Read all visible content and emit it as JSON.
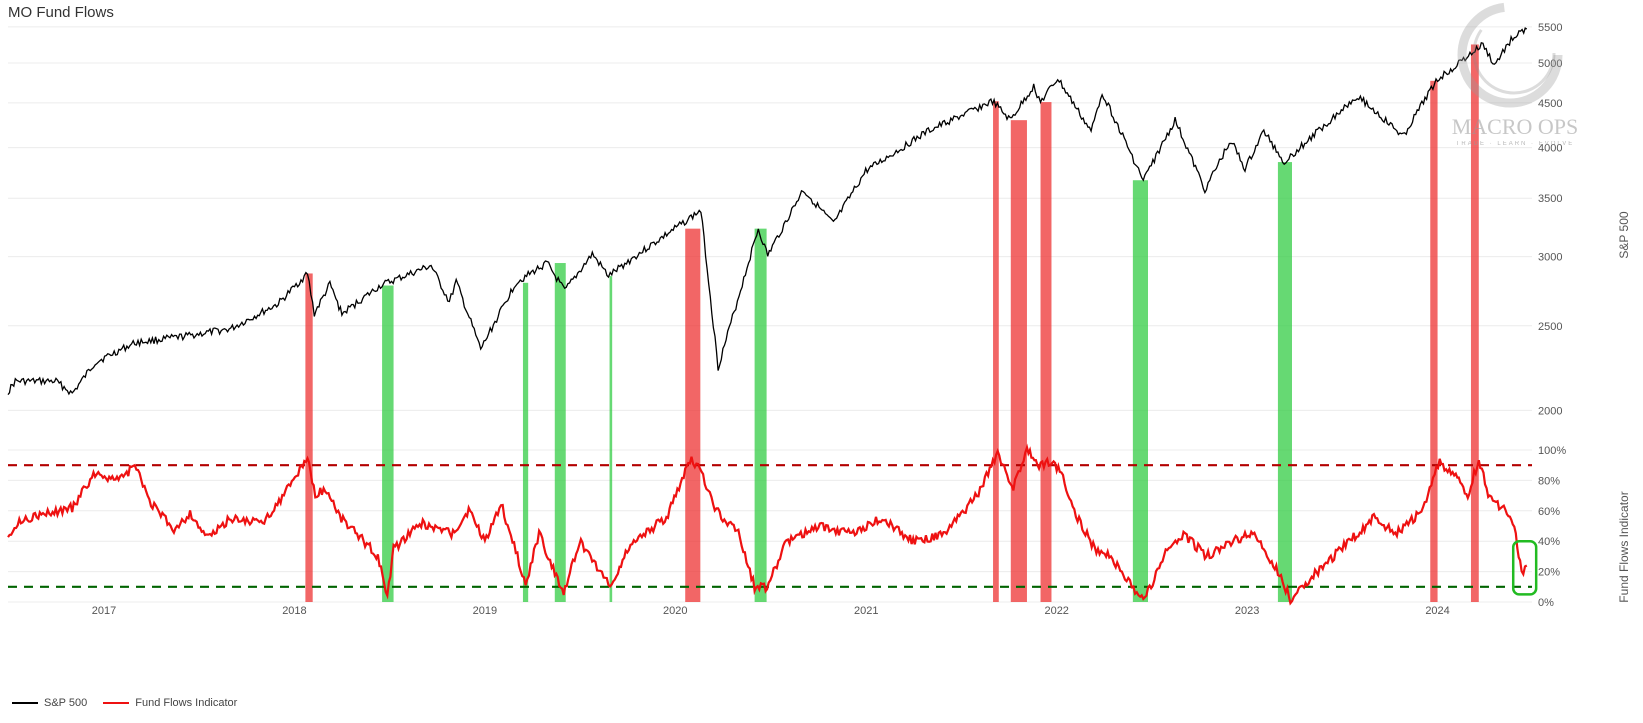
{
  "title": "MO Fund Flows",
  "watermark": {
    "name": "MACRO OPS",
    "tagline": "TRADE · LEARN · EVOLVE"
  },
  "legend": [
    {
      "label": "S&P 500",
      "color": "#000000"
    },
    {
      "label": "Fund Flows Indicator",
      "color": "#ee1111"
    }
  ],
  "chart_data": [
    {
      "type": "line",
      "name": "S&P 500",
      "ylabel": "S&P 500",
      "yscale": "log",
      "ylim": [
        1950,
        5600
      ],
      "yticks": [
        2000,
        2500,
        3000,
        3500,
        4000,
        4500,
        5000,
        5500
      ],
      "xlim": [
        "2016-07-01",
        "2024-06-30"
      ],
      "grid": true,
      "points": [
        [
          "2016-07-01",
          2100
        ],
        [
          "2016-07-15",
          2160
        ],
        [
          "2016-10-01",
          2160
        ],
        [
          "2016-11-01",
          2090
        ],
        [
          "2016-12-15",
          2270
        ],
        [
          "2017-03-01",
          2390
        ],
        [
          "2017-06-01",
          2430
        ],
        [
          "2017-09-01",
          2480
        ],
        [
          "2017-12-01",
          2650
        ],
        [
          "2018-01-26",
          2870
        ],
        [
          "2018-02-08",
          2580
        ],
        [
          "2018-03-10",
          2790
        ],
        [
          "2018-04-02",
          2580
        ],
        [
          "2018-06-15",
          2780
        ],
        [
          "2018-09-20",
          2930
        ],
        [
          "2018-10-25",
          2660
        ],
        [
          "2018-11-07",
          2810
        ],
        [
          "2018-12-24",
          2350
        ],
        [
          "2019-03-01",
          2800
        ],
        [
          "2019-04-30",
          2950
        ],
        [
          "2019-06-03",
          2740
        ],
        [
          "2019-07-26",
          3020
        ],
        [
          "2019-08-26",
          2850
        ],
        [
          "2019-10-15",
          3000
        ],
        [
          "2019-12-31",
          3230
        ],
        [
          "2020-02-19",
          3390
        ],
        [
          "2020-03-23",
          2240
        ],
        [
          "2020-06-08",
          3230
        ],
        [
          "2020-06-26",
          3010
        ],
        [
          "2020-09-02",
          3580
        ],
        [
          "2020-10-30",
          3270
        ],
        [
          "2020-12-31",
          3760
        ],
        [
          "2021-04-30",
          4180
        ],
        [
          "2021-08-31",
          4520
        ],
        [
          "2021-10-04",
          4300
        ],
        [
          "2021-11-18",
          4700
        ],
        [
          "2021-12-01",
          4510
        ],
        [
          "2022-01-03",
          4800
        ],
        [
          "2022-03-08",
          4170
        ],
        [
          "2022-03-29",
          4630
        ],
        [
          "2022-06-16",
          3670
        ],
        [
          "2022-08-16",
          4300
        ],
        [
          "2022-10-12",
          3580
        ],
        [
          "2022-12-01",
          4080
        ],
        [
          "2022-12-28",
          3780
        ],
        [
          "2023-02-02",
          4180
        ],
        [
          "2023-03-13",
          3850
        ],
        [
          "2023-07-31",
          4590
        ],
        [
          "2023-10-27",
          4120
        ],
        [
          "2023-12-29",
          4770
        ],
        [
          "2024-03-28",
          5250
        ],
        [
          "2024-04-19",
          4970
        ],
        [
          "2024-05-21",
          5320
        ],
        [
          "2024-06-20",
          5470
        ]
      ]
    },
    {
      "type": "line",
      "name": "Fund Flows Indicator",
      "ylabel": "Fund Flows Indicator",
      "ylim": [
        0,
        100
      ],
      "yticks": [
        "0%",
        "20%",
        "40%",
        "60%",
        "80%",
        "100%"
      ],
      "xticks": [
        "2017",
        "2018",
        "2019",
        "2020",
        "2021",
        "2022",
        "2023",
        "2024"
      ],
      "thresholds": [
        {
          "value": 90,
          "color": "#b30000",
          "style": "dashed"
        },
        {
          "value": 10,
          "color": "#006400",
          "style": "dashed"
        }
      ],
      "points": [
        [
          "2016-07-01",
          45
        ],
        [
          "2016-08-01",
          55
        ],
        [
          "2016-09-15",
          58
        ],
        [
          "2016-11-01",
          62
        ],
        [
          "2016-12-15",
          85
        ],
        [
          "2017-02-01",
          80
        ],
        [
          "2017-03-01",
          90
        ],
        [
          "2017-04-01",
          65
        ],
        [
          "2017-05-15",
          48
        ],
        [
          "2017-06-15",
          58
        ],
        [
          "2017-07-20",
          42
        ],
        [
          "2017-09-01",
          55
        ],
        [
          "2017-11-01",
          52
        ],
        [
          "2017-12-15",
          72
        ],
        [
          "2018-01-26",
          95
        ],
        [
          "2018-02-10",
          70
        ],
        [
          "2018-03-01",
          75
        ],
        [
          "2018-04-01",
          55
        ],
        [
          "2018-05-01",
          45
        ],
        [
          "2018-06-10",
          30
        ],
        [
          "2018-06-28",
          2
        ],
        [
          "2018-07-10",
          35
        ],
        [
          "2018-08-01",
          42
        ],
        [
          "2018-09-01",
          52
        ],
        [
          "2018-10-01",
          48
        ],
        [
          "2018-11-01",
          45
        ],
        [
          "2018-12-01",
          60
        ],
        [
          "2019-01-01",
          40
        ],
        [
          "2019-02-01",
          65
        ],
        [
          "2019-03-20",
          12
        ],
        [
          "2019-04-15",
          45
        ],
        [
          "2019-05-15",
          20
        ],
        [
          "2019-06-01",
          5
        ],
        [
          "2019-07-01",
          40
        ],
        [
          "2019-08-01",
          25
        ],
        [
          "2019-09-01",
          10
        ],
        [
          "2019-10-01",
          35
        ],
        [
          "2019-11-01",
          45
        ],
        [
          "2019-12-15",
          55
        ],
        [
          "2020-02-01",
          95
        ],
        [
          "2020-02-20",
          85
        ],
        [
          "2020-03-20",
          60
        ],
        [
          "2020-05-01",
          45
        ],
        [
          "2020-06-01",
          10
        ],
        [
          "2020-06-25",
          10
        ],
        [
          "2020-08-01",
          40
        ],
        [
          "2020-10-01",
          50
        ],
        [
          "2020-12-01",
          45
        ],
        [
          "2021-02-01",
          55
        ],
        [
          "2021-04-01",
          40
        ],
        [
          "2021-06-01",
          45
        ],
        [
          "2021-08-01",
          70
        ],
        [
          "2021-09-10",
          98
        ],
        [
          "2021-10-10",
          75
        ],
        [
          "2021-11-05",
          100
        ],
        [
          "2021-11-25",
          90
        ],
        [
          "2021-12-20",
          92
        ],
        [
          "2022-01-10",
          85
        ],
        [
          "2022-02-10",
          55
        ],
        [
          "2022-03-15",
          35
        ],
        [
          "2022-04-15",
          30
        ],
        [
          "2022-05-15",
          15
        ],
        [
          "2022-06-10",
          1
        ],
        [
          "2022-07-01",
          10
        ],
        [
          "2022-08-01",
          35
        ],
        [
          "2022-09-01",
          45
        ],
        [
          "2022-10-15",
          30
        ],
        [
          "2022-12-01",
          40
        ],
        [
          "2023-01-15",
          45
        ],
        [
          "2023-03-01",
          20
        ],
        [
          "2023-03-25",
          2
        ],
        [
          "2023-04-20",
          12
        ],
        [
          "2023-06-01",
          25
        ],
        [
          "2023-07-15",
          40
        ],
        [
          "2023-09-01",
          55
        ],
        [
          "2023-10-15",
          45
        ],
        [
          "2023-12-01",
          60
        ],
        [
          "2024-01-05",
          92
        ],
        [
          "2024-02-05",
          82
        ],
        [
          "2024-02-28",
          70
        ],
        [
          "2024-03-20",
          94
        ],
        [
          "2024-04-10",
          68
        ],
        [
          "2024-05-10",
          60
        ],
        [
          "2024-05-30",
          45
        ],
        [
          "2024-06-10",
          18
        ],
        [
          "2024-06-20",
          24
        ]
      ]
    }
  ],
  "signal_bands": [
    {
      "type": "sell",
      "color": "#ee3333",
      "start": "2018-01-22",
      "end": "2018-02-05"
    },
    {
      "type": "buy",
      "color": "#33cc44",
      "start": "2018-06-18",
      "end": "2018-07-10"
    },
    {
      "type": "buy",
      "color": "#33cc44",
      "start": "2019-03-15",
      "end": "2019-03-25"
    },
    {
      "type": "buy",
      "color": "#33cc44",
      "start": "2019-05-15",
      "end": "2019-06-05"
    },
    {
      "type": "buy",
      "color": "#33cc44",
      "start": "2019-08-28",
      "end": "2019-09-02"
    },
    {
      "type": "sell",
      "color": "#ee3333",
      "start": "2020-01-20",
      "end": "2020-02-18"
    },
    {
      "type": "buy",
      "color": "#33cc44",
      "start": "2020-06-01",
      "end": "2020-06-24"
    },
    {
      "type": "sell",
      "color": "#ee3333",
      "start": "2021-09-01",
      "end": "2021-09-12"
    },
    {
      "type": "sell",
      "color": "#ee3333",
      "start": "2021-10-05",
      "end": "2021-11-05"
    },
    {
      "type": "sell",
      "color": "#ee3333",
      "start": "2021-12-01",
      "end": "2021-12-22"
    },
    {
      "type": "buy",
      "color": "#33cc44",
      "start": "2022-05-27",
      "end": "2022-06-25"
    },
    {
      "type": "buy",
      "color": "#33cc44",
      "start": "2023-03-01",
      "end": "2023-03-28"
    },
    {
      "type": "sell",
      "color": "#ee3333",
      "start": "2023-12-18",
      "end": "2024-01-01"
    },
    {
      "type": "sell",
      "color": "#ee3333",
      "start": "2024-03-05",
      "end": "2024-03-20"
    }
  ],
  "highlight": {
    "color": "#22bb22",
    "start": "2024-05-25",
    "end": "2024-07-08",
    "ylim": [
      5,
      40
    ]
  }
}
